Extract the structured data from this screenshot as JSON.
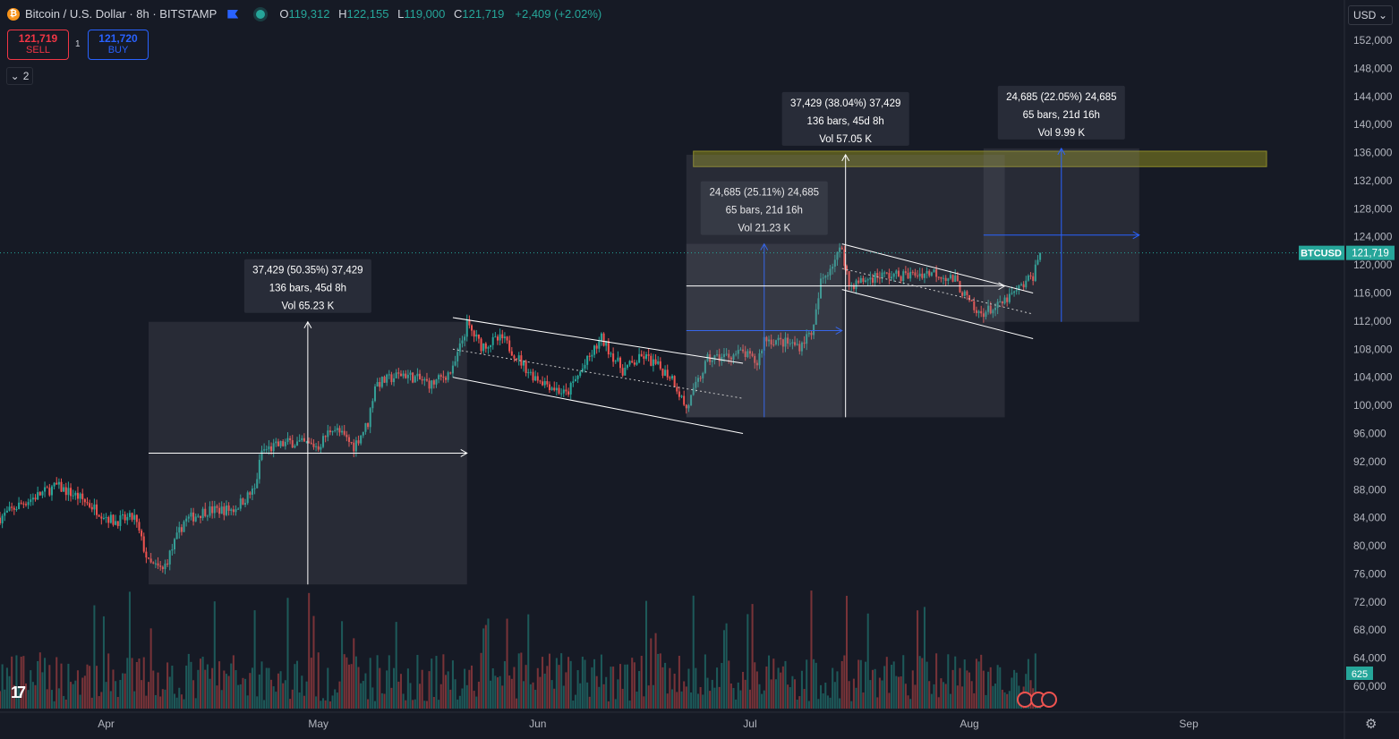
{
  "header": {
    "symbol_title": "Bitcoin / U.S. Dollar · 8h · BITSTAMP",
    "coin_glyph": "₿",
    "ohlc": [
      {
        "k": "O",
        "v": "119,312"
      },
      {
        "k": "H",
        "v": "122,155"
      },
      {
        "k": "L",
        "v": "119,000"
      },
      {
        "k": "C",
        "v": "121,719"
      }
    ],
    "change": "+2,409 (+2.02%)"
  },
  "trade": {
    "sell_price": "121,719",
    "sell_label": "SELL",
    "quantity": "1",
    "buy_price": "121,720",
    "buy_label": "BUY"
  },
  "indicators_toggle": "2",
  "currency_selector": "USD",
  "colors": {
    "background": "#161a25",
    "up": "#26a69a",
    "down": "#ef5350",
    "accent": "#2962ff",
    "zone": "#6b6a1e"
  },
  "chart_data": {
    "type": "candlestick",
    "symbol": "BTCUSD",
    "timeframe": "8h",
    "exchange": "BITSTAMP",
    "x_axis": {
      "labels": [
        "Apr",
        "May",
        "Jun",
        "Jul",
        "Aug",
        "Sep"
      ],
      "range": [
        "2025-03-17",
        "2025-09-23"
      ]
    },
    "y_axis": {
      "ticks": [
        "152,000",
        "148,000",
        "144,000",
        "140,000",
        "136,000",
        "132,000",
        "128,000",
        "124,000",
        "120,000",
        "116,000",
        "112,000",
        "108,000",
        "104,000",
        "100,000",
        "96,000",
        "92,000",
        "88,000",
        "84,000",
        "80,000",
        "76,000",
        "72,000",
        "68,000",
        "64,000",
        "60,000"
      ],
      "range": [
        58000,
        154000
      ]
    },
    "last_price": {
      "label": "BTCUSD",
      "value": "121,719",
      "numeric": 121719
    },
    "volume_label": "625",
    "price_path": [
      [
        "2025-03-17",
        84000
      ],
      [
        "2025-03-20",
        86000
      ],
      [
        "2025-03-25",
        88500
      ],
      [
        "2025-03-28",
        87000
      ],
      [
        "2025-04-02",
        83500
      ],
      [
        "2025-04-05",
        84000
      ],
      [
        "2025-04-07",
        77500
      ],
      [
        "2025-04-09",
        76500
      ],
      [
        "2025-04-12",
        83500
      ],
      [
        "2025-04-15",
        85000
      ],
      [
        "2025-04-19",
        85200
      ],
      [
        "2025-04-22",
        88000
      ],
      [
        "2025-04-23",
        93500
      ],
      [
        "2025-04-27",
        94800
      ],
      [
        "2025-05-01",
        94200
      ],
      [
        "2025-05-03",
        97000
      ],
      [
        "2025-05-06",
        94200
      ],
      [
        "2025-05-08",
        97500
      ],
      [
        "2025-05-09",
        103000
      ],
      [
        "2025-05-13",
        104500
      ],
      [
        "2025-05-17",
        103000
      ],
      [
        "2025-05-20",
        105000
      ],
      [
        "2025-05-22",
        111500
      ],
      [
        "2025-05-24",
        108500
      ],
      [
        "2025-05-27",
        109500
      ],
      [
        "2025-05-31",
        104500
      ],
      [
        "2025-06-05",
        101500
      ],
      [
        "2025-06-10",
        109500
      ],
      [
        "2025-06-13",
        105000
      ],
      [
        "2025-06-16",
        107000
      ],
      [
        "2025-06-20",
        104000
      ],
      [
        "2025-06-22",
        99500
      ],
      [
        "2025-06-25",
        106500
      ],
      [
        "2025-06-30",
        107500
      ],
      [
        "2025-07-02",
        106000
      ],
      [
        "2025-07-03",
        109500
      ],
      [
        "2025-07-08",
        108500
      ],
      [
        "2025-07-10",
        111000
      ],
      [
        "2025-07-11",
        117500
      ],
      [
        "2025-07-14",
        122500
      ],
      [
        "2025-07-15",
        117000
      ],
      [
        "2025-07-19",
        118500
      ],
      [
        "2025-07-23",
        118500
      ],
      [
        "2025-07-27",
        119000
      ],
      [
        "2025-07-30",
        117800
      ],
      [
        "2025-08-02",
        113000
      ],
      [
        "2025-08-05",
        114000
      ],
      [
        "2025-08-08",
        116500
      ],
      [
        "2025-08-10",
        118500
      ],
      [
        "2025-08-11",
        121719
      ]
    ],
    "drawings": {
      "measure_boxes": [
        {
          "label_lines": [
            "37,429 (50.35%) 37,429",
            "136 bars, 45d 8h",
            "Vol 65.23 K"
          ],
          "from": [
            "2025-04-07",
            74500
          ],
          "to": [
            "2025-05-22",
            111900
          ]
        },
        {
          "label_lines": [
            "24,685 (25.11%) 24,685",
            "65 bars, 21d 16h",
            "Vol 21.23 K"
          ],
          "from": [
            "2025-06-22",
            98300
          ],
          "to": [
            "2025-07-14",
            123000
          ]
        },
        {
          "label_lines": [
            "37,429 (38.04%) 37,429",
            "136 bars, 45d 8h",
            "Vol 57.05 K"
          ],
          "from": [
            "2025-06-22",
            98300
          ],
          "to": [
            "2025-08-06",
            135700
          ]
        },
        {
          "label_lines": [
            "24,685 (22.05%) 24,685",
            "65 bars, 21d 16h",
            "Vol 9.99 K"
          ],
          "from": [
            "2025-08-03",
            111900
          ],
          "to": [
            "2025-08-25",
            136600
          ]
        }
      ],
      "resistance_zone": {
        "from": "2025-06-23",
        "to": "2025-09-12",
        "low": 134000,
        "high": 136200
      },
      "channels": [
        {
          "upper": [
            [
              "2025-05-20",
              112500
            ],
            [
              "2025-06-30",
              106000
            ]
          ],
          "lower": [
            [
              "2025-05-20",
              104000
            ],
            [
              "2025-06-30",
              96000
            ]
          ],
          "mid": [
            [
              "2025-05-20",
              108000
            ],
            [
              "2025-06-30",
              101000
            ]
          ]
        },
        {
          "upper": [
            [
              "2025-07-14",
              123000
            ],
            [
              "2025-08-10",
              116000
            ]
          ],
          "lower": [
            [
              "2025-07-14",
              116500
            ],
            [
              "2025-08-10",
              109500
            ]
          ],
          "mid": [
            [
              "2025-07-14",
              119500
            ],
            [
              "2025-08-10",
              113000
            ]
          ]
        }
      ]
    }
  }
}
